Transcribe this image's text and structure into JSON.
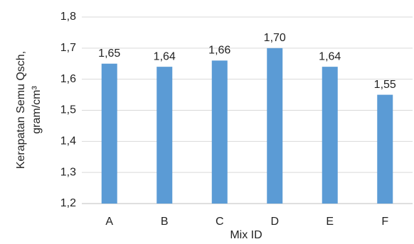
{
  "chart_data": {
    "type": "bar",
    "xlabel": "Mix ID",
    "ylabel": [
      "Kerapatan Semu Qsch,",
      "gram/cm³"
    ],
    "categories": [
      "A",
      "B",
      "C",
      "D",
      "E",
      "F"
    ],
    "values": [
      1.65,
      1.64,
      1.66,
      1.7,
      1.64,
      1.55
    ],
    "value_labels": [
      "1,65",
      "1,64",
      "1,66",
      "1,70",
      "1,64",
      "1,55"
    ],
    "color": "#5b9bd5",
    "ylim": [
      1.2,
      1.8
    ],
    "yticks": [
      {
        "value": 1.2,
        "label": "1,2"
      },
      {
        "value": 1.3,
        "label": "1,3"
      },
      {
        "value": 1.4,
        "label": "1,4"
      },
      {
        "value": 1.5,
        "label": "1,5"
      },
      {
        "value": 1.6,
        "label": "1,6"
      },
      {
        "value": 1.7,
        "label": "1,7"
      },
      {
        "value": 1.8,
        "label": "1,8"
      }
    ],
    "grid": true
  }
}
